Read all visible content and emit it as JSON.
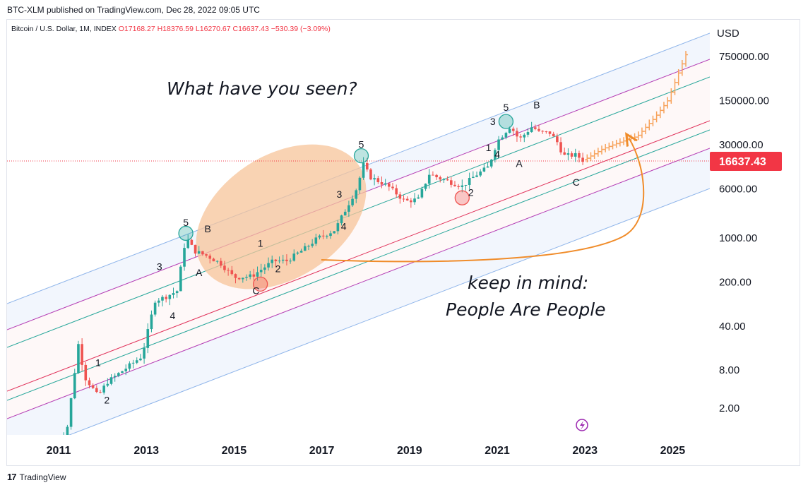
{
  "header": {
    "published": "BTC-XLM published on TradingView.com, Dec 28, 2022 09:05 UTC"
  },
  "legend": {
    "symbol": "Bitcoin / U.S. Dollar, 1M, INDEX",
    "open": "O17168.27",
    "high": "H18376.59",
    "low": "L16270.67",
    "close": "C16637.43",
    "change": "−530.39 (−3.09%)"
  },
  "footer": {
    "brand": "TradingView"
  },
  "colors": {
    "up": "#26a69a",
    "down": "#ef5350",
    "projection": "#f7a35c",
    "price_label_bg": "#f23645",
    "channel_blue": "#8fb5ea",
    "channel_purple": "#b43cb4",
    "channel_green": "#26a69a",
    "channel_red": "#e0315a",
    "ellipse": "#f7c49a",
    "arrow": "#f08c2a"
  },
  "chart_data": {
    "type": "candlestick",
    "scale": "log",
    "currency_label": "USD",
    "ytick_labels": [
      "750000.00",
      "150000.00",
      "30000.00",
      "6000.00",
      "1000.00",
      "200.00",
      "40.00",
      "8.00",
      "2.00"
    ],
    "xtick_labels": [
      "2011",
      "2013",
      "2015",
      "2017",
      "2019",
      "2021",
      "2023",
      "2025"
    ],
    "last_price": "16637.43",
    "wave_points": [
      {
        "label": "1",
        "date": 2011.9,
        "price": 9
      },
      {
        "label": "2",
        "date": 2012.1,
        "price": 2.3
      },
      {
        "label": "3",
        "date": 2013.3,
        "price": 300
      },
      {
        "label": "4",
        "date": 2013.6,
        "price": 50
      },
      {
        "label": "5",
        "date": 2013.9,
        "price": 1500
      },
      {
        "label": "A",
        "date": 2014.2,
        "price": 240
      },
      {
        "label": "B",
        "date": 2014.4,
        "price": 1200
      },
      {
        "label": "C",
        "date": 2015.5,
        "price": 125
      },
      {
        "label": "1",
        "date": 2015.6,
        "price": 700
      },
      {
        "label": "2",
        "date": 2016.0,
        "price": 280
      },
      {
        "label": "3",
        "date": 2017.4,
        "price": 4200
      },
      {
        "label": "4",
        "date": 2017.5,
        "price": 1300
      },
      {
        "label": "5",
        "date": 2017.9,
        "price": 26000
      },
      {
        "label": "1",
        "date": 2020.8,
        "price": 23000
      },
      {
        "label": "2",
        "date": 2020.4,
        "price": 4500
      },
      {
        "label": "3",
        "date": 2020.9,
        "price": 60000
      },
      {
        "label": "4",
        "date": 2021.0,
        "price": 18000
      },
      {
        "label": "5",
        "date": 2021.2,
        "price": 100000
      },
      {
        "label": "A",
        "date": 2021.5,
        "price": 13000
      },
      {
        "label": "B",
        "date": 2021.9,
        "price": 110000
      },
      {
        "label": "C",
        "date": 2022.8,
        "price": 6500
      }
    ],
    "circled_points": [
      {
        "date": 2013.9,
        "price": 1150,
        "color": "#26a69a"
      },
      {
        "date": 2017.9,
        "price": 19500,
        "color": "#26a69a"
      },
      {
        "date": 2021.2,
        "price": 68000,
        "color": "#26a69a"
      },
      {
        "date": 2015.6,
        "price": 180,
        "color": "#ef5350"
      },
      {
        "date": 2020.2,
        "price": 4200,
        "color": "#ef5350"
      }
    ],
    "annotations": {
      "question": "What have you seen?",
      "note_line1": "keep in mind:",
      "note_line2": "People Are People"
    }
  }
}
